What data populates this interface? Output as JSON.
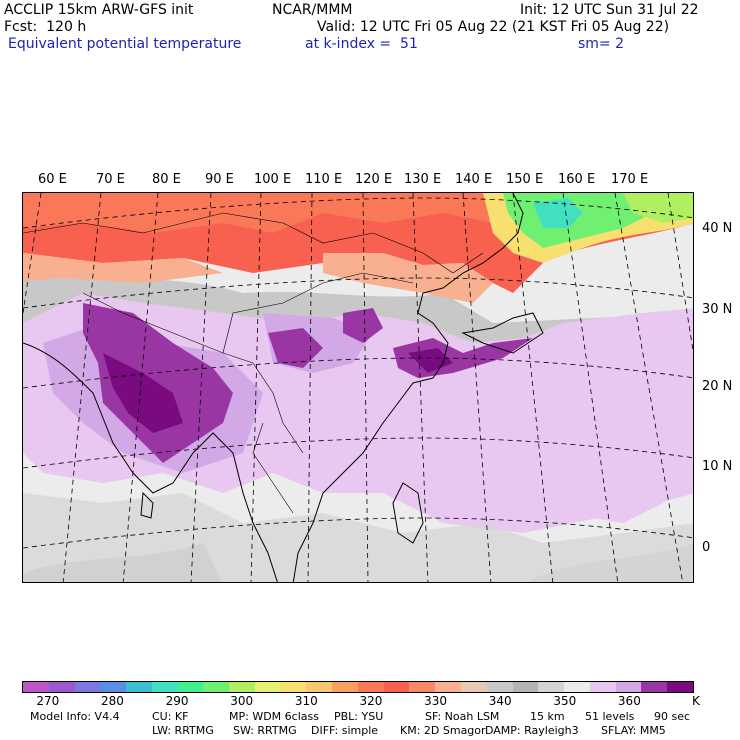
{
  "header": {
    "model_title": "ACCLIP 15km ARW-GFS init",
    "center": "NCAR/MMM",
    "init": "Init: 12 UTC Sun 31 Jul 22",
    "forecast": "Fcst:  120 h",
    "valid": "Valid: 12 UTC Fri 05 Aug 22 (21 KST Fri 05 Aug 22)",
    "field": "Equivalent potential temperature",
    "level": "at k-index =  51",
    "smoothing": "sm= 2"
  },
  "map": {
    "longitude_labels": [
      "60 E",
      "70 E",
      "80 E",
      "90 E",
      "100 E",
      "110 E",
      "120 E",
      "130 E",
      "140 E",
      "150 E",
      "160 E",
      "170 E"
    ],
    "latitude_labels": [
      "40 N",
      "30 N",
      "20 N",
      "10 N",
      "0"
    ]
  },
  "colorbar": {
    "unit": "K",
    "tick_labels": [
      "270",
      "280",
      "290",
      "300",
      "310",
      "320",
      "330",
      "340",
      "350",
      "360"
    ],
    "colors": [
      "#c054c8",
      "#9b59d0",
      "#7d78e0",
      "#5a8ee6",
      "#3cbfd0",
      "#40e0c0",
      "#40f090",
      "#70f070",
      "#b0f060",
      "#e8f070",
      "#f8e070",
      "#f8c870",
      "#f8a060",
      "#f87858",
      "#f86050",
      "#f88868",
      "#f8b090",
      "#e8c8b0",
      "#c8c8c8",
      "#b4b4b4",
      "#d4d4d4",
      "#ececec",
      "#e8c8f0",
      "#d2a8e6",
      "#9a36a4",
      "#7a0a80"
    ]
  },
  "footer": {
    "model_info": "Model Info: V4.4",
    "cu": "CU: KF",
    "mp": "MP: WDM 6class",
    "pbl": "PBL: YSU",
    "sf": "SF: Noah LSM",
    "res": "15 km",
    "levels": "51 levels",
    "dt": "90 sec",
    "lw": "LW: RRTMG",
    "sw": "SW: RRTMG",
    "diff": "DIFF: simple",
    "km": "KM: 2D Smagor",
    "damp": "DAMP: Rayleigh3",
    "sflay": "SFLAY: MM5"
  }
}
